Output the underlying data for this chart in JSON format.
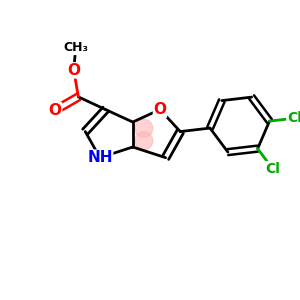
{
  "bg_color": "#ffffff",
  "bond_color": "#000000",
  "bond_width": 2.0,
  "atom_colors": {
    "O": "#ff0000",
    "N": "#0000ff",
    "Cl": "#00aa00",
    "C": "#000000"
  },
  "font_size_atoms": 11,
  "font_size_small": 10,
  "highlight_color": "#ffb0b0",
  "highlight_alpha": 0.55
}
